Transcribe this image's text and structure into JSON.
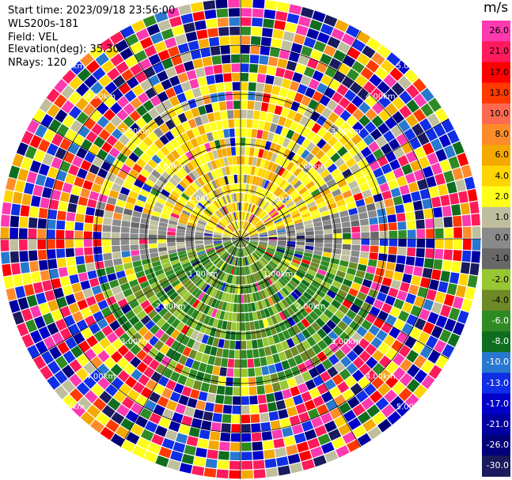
{
  "info": {
    "start_time": "Start time: 2023/09/18 23:56:00",
    "instrument": "WLS200s-181",
    "field": "Field: VEL",
    "elevation": "Elevation(deg): 35.30",
    "nrays": "NRays: 120"
  },
  "colorbar": {
    "unit": "m/s",
    "labels": [
      "26.0",
      "21.0",
      "17.0",
      "13.0",
      "10.0",
      "8.0",
      "6.0",
      "4.0",
      "2.0",
      "1.0",
      "0.0",
      "-1.0",
      "-2.0",
      "-4.0",
      "-6.0",
      "-8.0",
      "-10.0",
      "-13.0",
      "-17.0",
      "-21.0",
      "-26.0",
      "-30.0"
    ],
    "colors": [
      "#fd3ab0",
      "#ff1a5c",
      "#ff0000",
      "#ff3a00",
      "#fe6a4f",
      "#ff8c2a",
      "#f5a800",
      "#ffd400",
      "#ffff19",
      "#bfbf9e",
      "#8a8a8a",
      "#686868",
      "#97c733",
      "#6d8a26",
      "#2e8b24",
      "#0f6e1e",
      "#2878d0",
      "#0f2ee5",
      "#0000c8",
      "#0000a0",
      "#000078",
      "#1a1a5e"
    ]
  },
  "chart_data": {
    "type": "heatmap",
    "projection": "PPI (polar)",
    "field": "VEL",
    "n_rays": 120,
    "elevation_deg": 35.3,
    "range_ring_labels": [
      "1.00km",
      "2.00km",
      "3.00km",
      "4.00km",
      "5.00km"
    ],
    "range_rings_km": [
      1,
      2,
      3,
      4,
      5
    ],
    "spokes_deg": [
      0,
      30,
      60,
      90,
      120,
      150,
      180,
      210,
      240,
      270,
      300,
      330
    ],
    "value_range": [
      -30,
      30
    ],
    "pattern": {
      "north_near_range": "yellow/orange (+2 to +6 m/s)",
      "south_near_range": "green (-2 to -8 m/s)",
      "east_west_near_range": "grey (~0 m/s)",
      "far_range": "noise, all colors"
    }
  }
}
